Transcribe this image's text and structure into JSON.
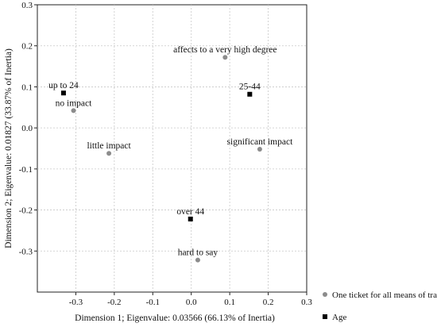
{
  "chart_data": {
    "type": "scatter",
    "title": "",
    "xlabel": "Dimension 1; Eigenvalue:  0.03566 (66.13% of Inertia)",
    "ylabel": "Dimension 2; Eigenvalue:  0.01827 (33.87% of Inertia)",
    "xlim": [
      -0.4,
      0.3
    ],
    "ylim": [
      -0.4,
      0.3
    ],
    "x_ticks": [
      "-0.3",
      "-0.2",
      "-0.1",
      "0.0",
      "0.1",
      "0.2",
      "0.3"
    ],
    "y_ticks": [
      "0.3",
      "0.2",
      "0.1",
      "0.0",
      "-0.1",
      "-0.2",
      "-0.3"
    ],
    "x_tick_values": [
      -0.3,
      -0.2,
      -0.1,
      0.0,
      0.1,
      0.2,
      0.3
    ],
    "y_tick_values": [
      0.3,
      0.2,
      0.1,
      0.0,
      -0.1,
      -0.2,
      -0.3
    ],
    "grid": true,
    "legend_position": "bottom-right",
    "series": [
      {
        "name": "One ticket for all means of transport",
        "marker": "circle",
        "color": "#8c8c8c",
        "points": [
          {
            "label": "affects to a very high degree",
            "x": 0.088,
            "y": 0.172
          },
          {
            "label": "no impact",
            "x": -0.306,
            "y": 0.042
          },
          {
            "label": "little impact",
            "x": -0.214,
            "y": -0.062
          },
          {
            "label": "significant impact",
            "x": 0.178,
            "y": -0.052
          },
          {
            "label": "hard to say",
            "x": 0.017,
            "y": -0.322
          }
        ]
      },
      {
        "name": "Age",
        "marker": "square",
        "color": "#000000",
        "points": [
          {
            "label": "up to 24",
            "x": -0.332,
            "y": 0.085
          },
          {
            "label": "25-44",
            "x": 0.152,
            "y": 0.082
          },
          {
            "label": "over 44",
            "x": -0.002,
            "y": -0.222
          }
        ]
      }
    ]
  }
}
